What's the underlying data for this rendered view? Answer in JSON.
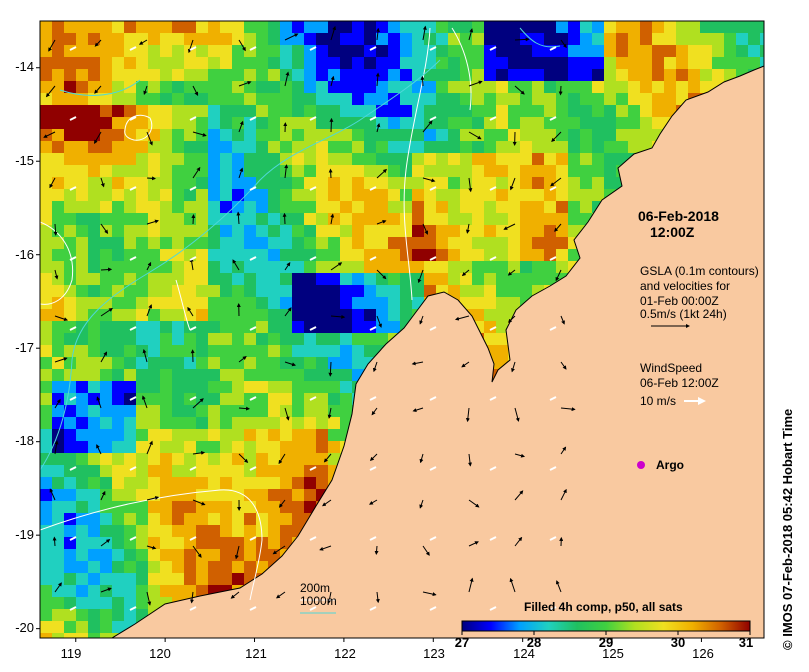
{
  "map": {
    "y_ticks": [
      "-14",
      "-15",
      "-16",
      "-17",
      "-18",
      "-19",
      "-20"
    ],
    "x_ticks": [
      "119",
      "120",
      "121",
      "122",
      "123",
      "124",
      "125",
      "126"
    ],
    "lat_range": [
      -20.1,
      -13.5
    ],
    "lon_range": [
      118.6,
      126.7
    ],
    "colors": {
      "land": "#f9c9a0",
      "coast": "#000000",
      "depth_200m": "#ffffff",
      "depth_1000m": "#4fd8d8",
      "argo": "#cc00cc"
    }
  },
  "date": {
    "line1": "06-Feb-2018",
    "line2": "12:00Z"
  },
  "gsla": {
    "line1": "GSLA (0.1m contours)",
    "line2": "and velocities for",
    "line3": "01-Feb 00:00Z",
    "scale_label": "0.5m/s (1kt 24h)"
  },
  "wind": {
    "line1": "WindSpeed",
    "line2": "06-Feb 12:00Z",
    "scale_label": "10 m/s"
  },
  "argo": {
    "label": "Argo"
  },
  "depth_legend": {
    "label_200": "200m",
    "label_1000": "1000m"
  },
  "colorbar": {
    "title": "Filled 4h comp, p50, all sats",
    "ticks": [
      "27",
      "28",
      "29",
      "30",
      "31"
    ],
    "range": [
      27,
      31
    ],
    "stops": [
      "#00007f",
      "#0000ff",
      "#00a0ff",
      "#20d0c0",
      "#20c060",
      "#40d040",
      "#b0e020",
      "#f0e020",
      "#f0b000",
      "#d06000",
      "#900000"
    ]
  },
  "credit": "IMOS 07-Feb-2018 05:42 Hobart Time"
}
